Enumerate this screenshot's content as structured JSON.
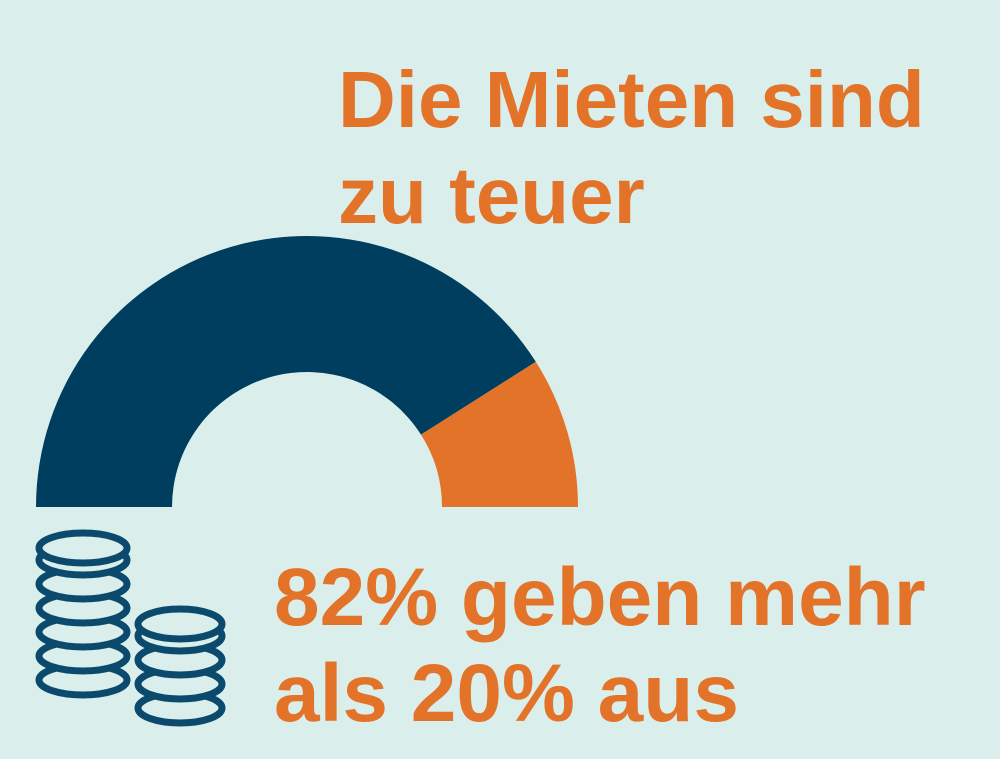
{
  "chart_data": {
    "type": "half-donut",
    "title": "Die Mieten sind zu teuer",
    "annotation": "82% geben mehr als 20% aus",
    "values": [
      82,
      18
    ],
    "colors": [
      "#003e5f",
      "#e37329"
    ]
  }
}
